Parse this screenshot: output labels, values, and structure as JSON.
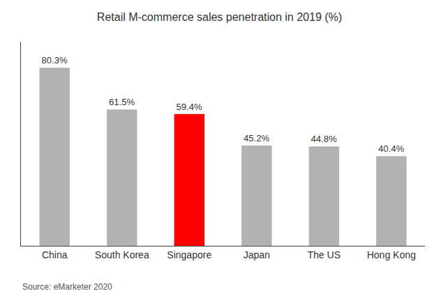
{
  "chart_data": {
    "type": "bar",
    "title": "Retail M-commerce sales penetration in 2019 (%)",
    "categories": [
      "China",
      "South Korea",
      "Singapore",
      "Japan",
      "The US",
      "Hong Kong"
    ],
    "values": [
      80.3,
      61.5,
      59.4,
      45.2,
      44.8,
      40.4
    ],
    "value_labels": [
      "80.3%",
      "61.5%",
      "59.4%",
      "45.2%",
      "44.8%",
      "40.4%"
    ],
    "colors": [
      "#b2b2b2",
      "#b2b2b2",
      "#ff0000",
      "#b2b2b2",
      "#b2b2b2",
      "#b2b2b2"
    ],
    "data_labels": true,
    "ylim": [
      0,
      92
    ],
    "tick_labels": "x",
    "grid": false,
    "annotations": [
      "Source: eMarketer 2020"
    ]
  }
}
